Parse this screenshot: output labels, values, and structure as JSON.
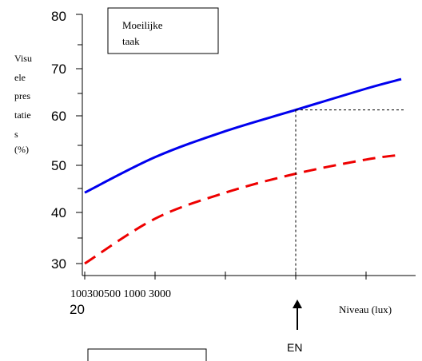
{
  "chart_data": {
    "type": "line",
    "title": "Moeilijke taak",
    "ylabel": [
      "Visu",
      "ele",
      "pres",
      "tatie",
      "s",
      "(%)"
    ],
    "xlabel": "Niveau (lux)",
    "y_tick_labels": [
      "20",
      "30",
      "40",
      "50",
      "60",
      "70",
      "80"
    ],
    "x_tick_label_text": "100300500 1000 3000",
    "ylim": [
      30,
      80
    ],
    "x_tick_count": 6,
    "grid": false,
    "series": [
      {
        "color": "#0000ee",
        "style": "solid",
        "points": [
          [
            0,
            45
          ],
          [
            1,
            52.5
          ],
          [
            2,
            58
          ],
          [
            3,
            62.5
          ],
          [
            4,
            67
          ],
          [
            4.5,
            69
          ]
        ]
      },
      {
        "color": "#ee0000",
        "style": "dashed",
        "points": [
          [
            0,
            30
          ],
          [
            1,
            39.5
          ],
          [
            2,
            45
          ],
          [
            3,
            49
          ],
          [
            4,
            52
          ],
          [
            4.5,
            53
          ]
        ]
      }
    ],
    "reference": {
      "x": 3,
      "y": 62.5,
      "marker_label": "EN"
    }
  }
}
